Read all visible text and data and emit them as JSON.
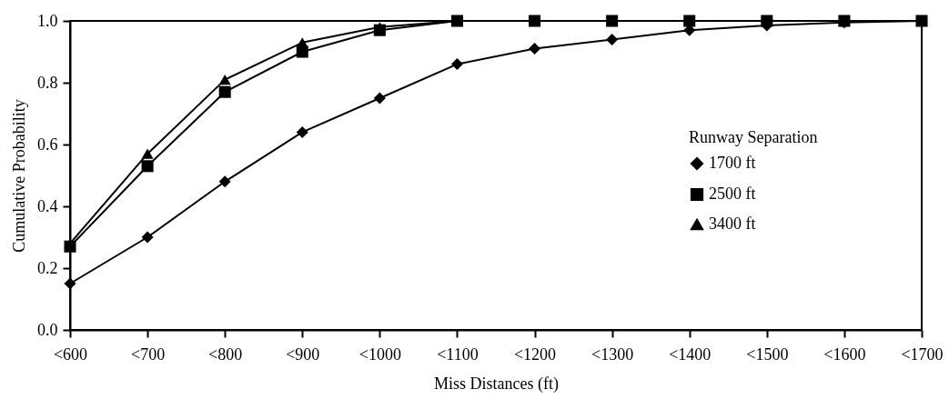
{
  "chart_data": {
    "type": "line",
    "xlabel": "Miss Distances (ft)",
    "ylabel": "Cumulative Probability",
    "legend_title": "Runway Separation",
    "categories": [
      "<600",
      "<700",
      "<800",
      "<900",
      "<1000",
      "<1100",
      "<1200",
      "<1300",
      "<1400",
      "<1500",
      "<1600",
      "<1700"
    ],
    "series": [
      {
        "name": "1700 ft",
        "color": "#000000",
        "marker": "diamond",
        "values": [
          0.15,
          0.3,
          0.48,
          0.64,
          0.75,
          0.86,
          0.91,
          0.94,
          0.97,
          0.985,
          0.995,
          1.0
        ]
      },
      {
        "name": "2500 ft",
        "color": "#000000",
        "marker": "square",
        "values": [
          0.27,
          0.53,
          0.77,
          0.9,
          0.97,
          1.0,
          1.0,
          1.0,
          1.0,
          1.0,
          1.0,
          1.0
        ]
      },
      {
        "name": "3400 ft",
        "color": "#000000",
        "marker": "triangle",
        "values": [
          0.28,
          0.57,
          0.81,
          0.93,
          0.98,
          1.0,
          1.0,
          1.0,
          1.0,
          1.0,
          1.0,
          1.0
        ]
      }
    ],
    "ylim": [
      0,
      1
    ],
    "yticks": [
      {
        "value": 0,
        "label": "0.0"
      },
      {
        "value": 0.2,
        "label": "0.2"
      },
      {
        "value": 0.4,
        "label": "0.4"
      },
      {
        "value": 0.6,
        "label": "0.6"
      },
      {
        "value": 0.8,
        "label": "0.8"
      },
      {
        "value": 1,
        "label": "1.0"
      }
    ],
    "grid": false,
    "legend": "right",
    "line_style": "solid"
  }
}
